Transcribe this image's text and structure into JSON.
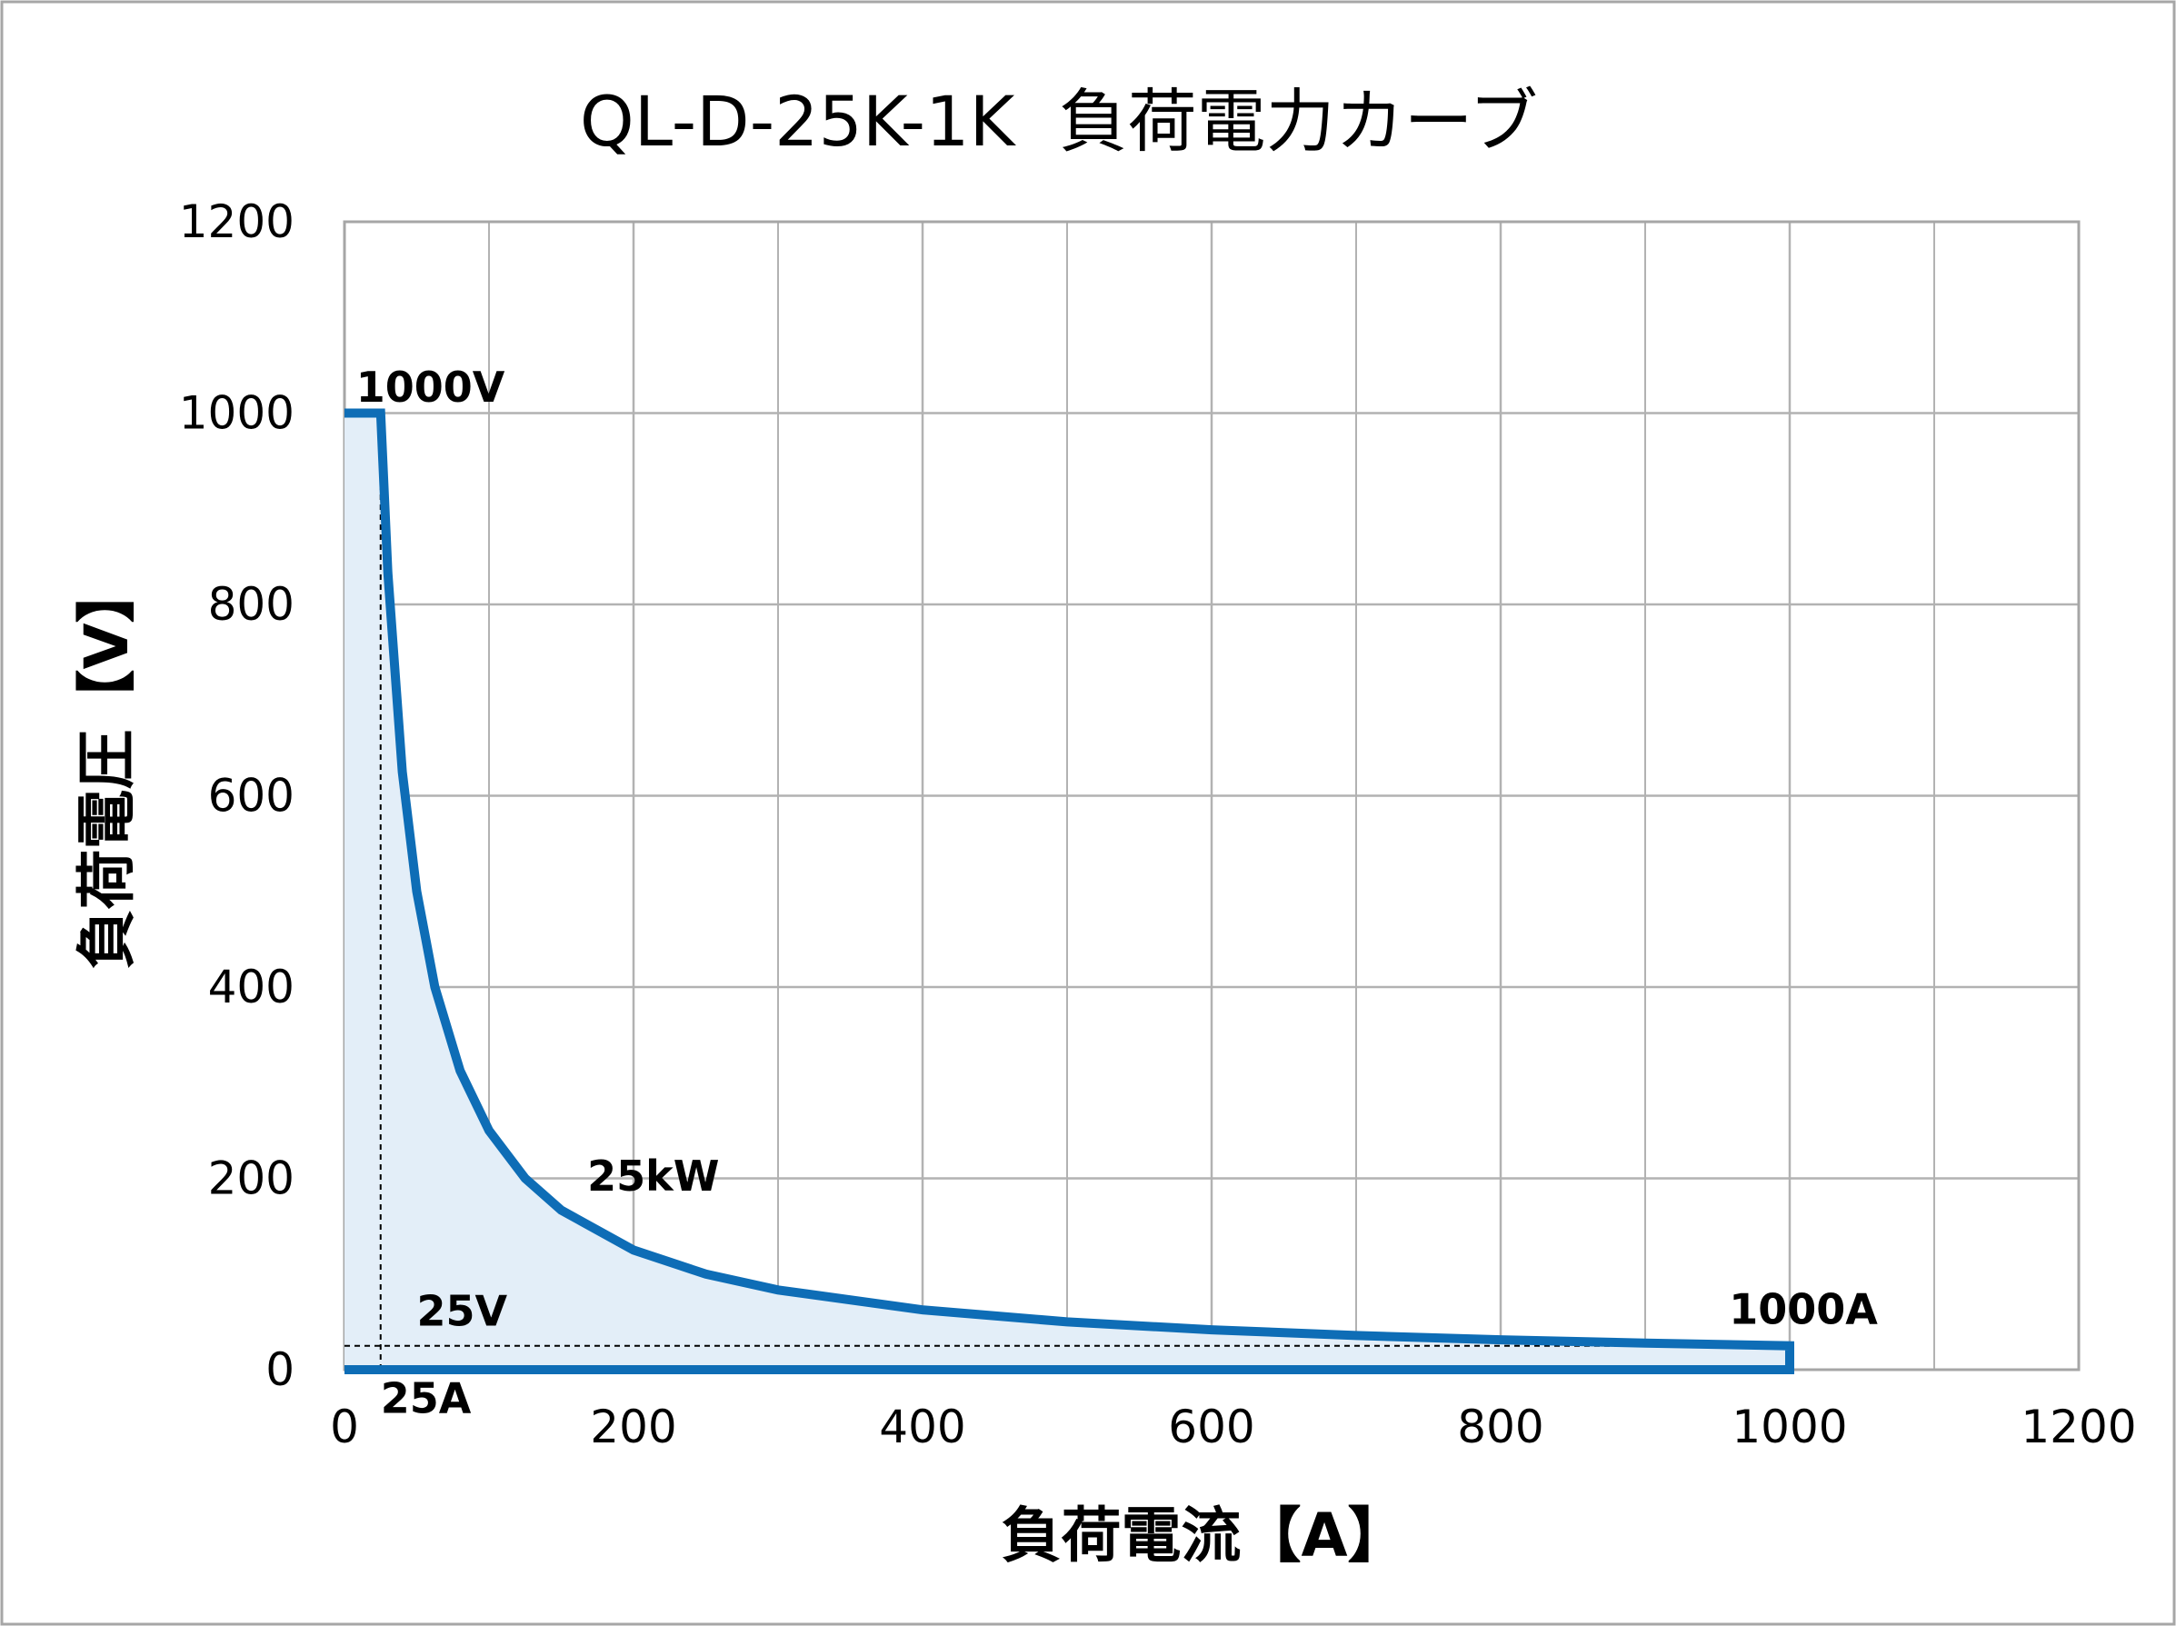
{
  "chart_data": {
    "type": "area",
    "title": "QL-D-25K-1K  負荷電力カーブ",
    "xlabel": "負荷電流【A】",
    "ylabel": "負荷電圧【V】",
    "xlim": [
      0,
      1200
    ],
    "ylim": [
      0,
      1200
    ],
    "x_ticks": [
      "0",
      "200",
      "400",
      "600",
      "800",
      "1000",
      "1200"
    ],
    "y_ticks": [
      "0",
      "200",
      "400",
      "600",
      "800",
      "1000",
      "1200"
    ],
    "grid": true,
    "series": [
      {
        "type": "line",
        "power_w": 25000,
        "x": [
          0,
          25,
          25,
          30,
          40,
          50,
          62.5,
          80,
          100,
          125,
          150,
          200,
          250,
          300,
          400,
          500,
          600,
          700,
          800,
          900,
          1000,
          1000,
          0
        ],
        "y": [
          1000,
          1000,
          1000,
          833.3,
          625,
          500,
          400,
          312.5,
          250,
          200,
          166.7,
          125,
          100,
          83.3,
          62.5,
          50,
          41.7,
          35.7,
          31.25,
          27.8,
          25,
          0,
          0
        ],
        "color": "#0E6DB6",
        "fill": "#E3EEF8"
      }
    ],
    "guides": [
      {
        "type": "vertical",
        "x": 25,
        "y_to": 1000
      },
      {
        "type": "horizontal",
        "y": 25,
        "x_to": 1000
      }
    ],
    "annotations": [
      {
        "text": "1000V",
        "x": 8,
        "y": 1012
      },
      {
        "text": "25kW",
        "x": 168,
        "y": 187
      },
      {
        "text": "25V",
        "x": 50,
        "y": 46
      },
      {
        "text": "25A",
        "x": 25,
        "y": -45
      },
      {
        "text": "1000A",
        "x": 958,
        "y": 48
      }
    ],
    "colors": {
      "line": "#0E6DB6",
      "fill": "#E3EEF8",
      "grid": "#B2B2B2",
      "frame": "#A6A6A6"
    }
  }
}
